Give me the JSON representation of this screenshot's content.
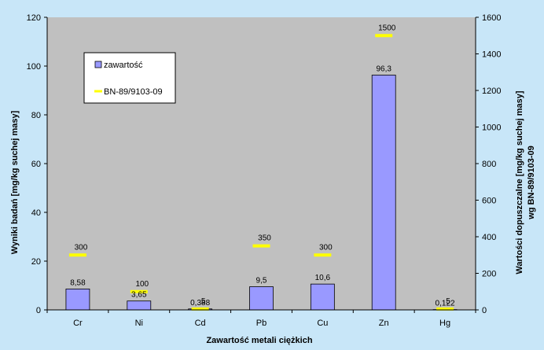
{
  "chart_data": {
    "type": "bar",
    "categories": [
      "Cr",
      "Ni",
      "Cd",
      "Pb",
      "Cu",
      "Zn",
      "Hg"
    ],
    "series": [
      {
        "name": "zawartość",
        "axis": "left",
        "mark": "bar",
        "values": [
          8.58,
          3.65,
          0.388,
          9.5,
          10.6,
          96.3,
          0.122
        ],
        "labels": [
          "8,58",
          "3,65",
          "0,388",
          "9,5",
          "10,6",
          "96,3",
          "0,122"
        ],
        "color": "#9999ff"
      },
      {
        "name": "BN-89/9103-09",
        "axis": "right",
        "mark": "dash",
        "values": [
          300,
          100,
          5,
          350,
          300,
          1500,
          5
        ],
        "labels": [
          "300",
          "100",
          "5",
          "350",
          "300",
          "1500",
          "5"
        ],
        "color": "#ffff00"
      }
    ],
    "xlabel": "Zawartość metali ciężkich",
    "ylabel": "Wyniki badań  [mg/kg suchej masy]",
    "ylabel2_line1": "Wartości dopuszczalne [mg/kg suchej masy]",
    "ylabel2_line2": "wg  BN-89/9103-09",
    "ylim": [
      0,
      120
    ],
    "yticks": [
      0,
      20,
      40,
      60,
      80,
      100,
      120
    ],
    "ylim2": [
      0,
      1600
    ],
    "yticks2": [
      0,
      200,
      400,
      600,
      800,
      1000,
      1200,
      1400,
      1600
    ],
    "grid": false,
    "plot_background": "#c0c0c0",
    "page_background": "#c8e6f8",
    "legend_position": "top-left"
  }
}
